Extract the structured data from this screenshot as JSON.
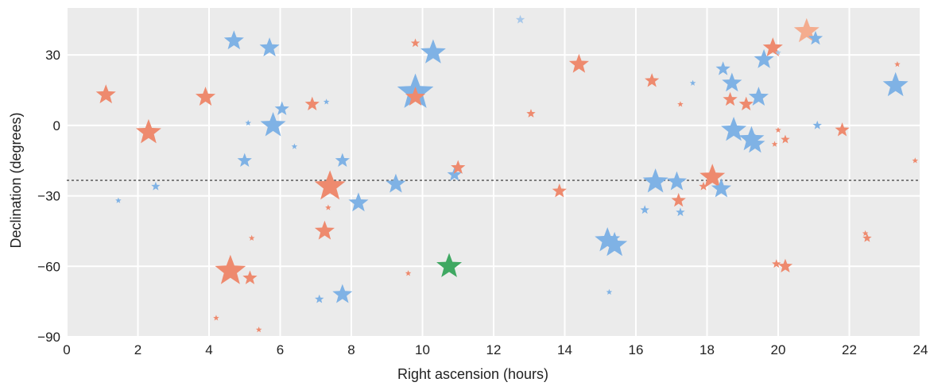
{
  "chart_data": {
    "type": "scatter",
    "title": "",
    "xlabel": "Right ascension (hours)",
    "ylabel": "Declination (degrees)",
    "xlim": [
      0,
      24
    ],
    "ylim": [
      -90,
      50
    ],
    "xticks": [
      0,
      2,
      4,
      6,
      8,
      10,
      12,
      14,
      16,
      18,
      20,
      22,
      24
    ],
    "yticks": [
      -90,
      -60,
      -30,
      0,
      30
    ],
    "ytick_labels": [
      "−90",
      "−60",
      "−30",
      "0",
      "30"
    ],
    "grid": true,
    "background": "#ebebeb",
    "reference_line": {
      "y": -23.4,
      "style": "dotted",
      "color": "#666666"
    },
    "colors": {
      "blue": "#7fb2e5",
      "orange": "#ee8a6e",
      "light_orange": "#f4ac8e",
      "light_blue": "#a8c8ea",
      "green": "#3fa862"
    },
    "marker": "star",
    "points": [
      {
        "ra": 1.1,
        "dec": 13,
        "mag": 2,
        "color": "orange"
      },
      {
        "ra": 2.3,
        "dec": -3,
        "mag": 1,
        "color": "orange"
      },
      {
        "ra": 1.45,
        "dec": -32,
        "mag": 5,
        "color": "blue"
      },
      {
        "ra": 2.5,
        "dec": -26,
        "mag": 4,
        "color": "blue"
      },
      {
        "ra": 3.9,
        "dec": 12,
        "mag": 2,
        "color": "orange"
      },
      {
        "ra": 4.2,
        "dec": -82,
        "mag": 5,
        "color": "orange"
      },
      {
        "ra": 4.6,
        "dec": -62,
        "mag": 0,
        "color": "orange"
      },
      {
        "ra": 4.7,
        "dec": 36,
        "mag": 2,
        "color": "blue"
      },
      {
        "ra": 5.0,
        "dec": -15,
        "mag": 3,
        "color": "blue"
      },
      {
        "ra": 5.1,
        "dec": 1,
        "mag": 5,
        "color": "blue"
      },
      {
        "ra": 5.15,
        "dec": -65,
        "mag": 3,
        "color": "orange"
      },
      {
        "ra": 5.2,
        "dec": -48,
        "mag": 5,
        "color": "orange"
      },
      {
        "ra": 5.4,
        "dec": -87,
        "mag": 5,
        "color": "orange"
      },
      {
        "ra": 5.7,
        "dec": 33,
        "mag": 2,
        "color": "blue"
      },
      {
        "ra": 5.8,
        "dec": 0,
        "mag": 1,
        "color": "blue"
      },
      {
        "ra": 6.05,
        "dec": 7,
        "mag": 3,
        "color": "blue"
      },
      {
        "ra": 6.4,
        "dec": -9,
        "mag": 5,
        "color": "blue"
      },
      {
        "ra": 6.9,
        "dec": 9,
        "mag": 3,
        "color": "orange"
      },
      {
        "ra": 7.1,
        "dec": -74,
        "mag": 4,
        "color": "blue"
      },
      {
        "ra": 7.25,
        "dec": -45,
        "mag": 2,
        "color": "orange"
      },
      {
        "ra": 7.3,
        "dec": 10,
        "mag": 5,
        "color": "blue"
      },
      {
        "ra": 7.35,
        "dec": -35,
        "mag": 5,
        "color": "orange"
      },
      {
        "ra": 7.4,
        "dec": -26,
        "mag": 0,
        "color": "orange"
      },
      {
        "ra": 7.75,
        "dec": -15,
        "mag": 3,
        "color": "blue"
      },
      {
        "ra": 7.75,
        "dec": -72,
        "mag": 2,
        "color": "blue"
      },
      {
        "ra": 8.2,
        "dec": -33,
        "mag": 2,
        "color": "blue"
      },
      {
        "ra": 9.25,
        "dec": -25,
        "mag": 2,
        "color": "blue"
      },
      {
        "ra": 9.6,
        "dec": -63,
        "mag": 5,
        "color": "orange"
      },
      {
        "ra": 9.8,
        "dec": 35,
        "mag": 4,
        "color": "orange"
      },
      {
        "ra": 9.8,
        "dec": 14,
        "mag": -1,
        "color": "blue"
      },
      {
        "ra": 9.8,
        "dec": 12,
        "mag": 2,
        "color": "orange"
      },
      {
        "ra": 10.3,
        "dec": 31,
        "mag": 1,
        "color": "blue"
      },
      {
        "ra": 10.75,
        "dec": -60,
        "mag": 1,
        "color": "green"
      },
      {
        "ra": 10.9,
        "dec": -21,
        "mag": 3,
        "color": "blue"
      },
      {
        "ra": 11.0,
        "dec": -18,
        "mag": 3,
        "color": "orange"
      },
      {
        "ra": 12.75,
        "dec": 45,
        "mag": 4,
        "color": "light_blue"
      },
      {
        "ra": 13.05,
        "dec": 5,
        "mag": 4,
        "color": "orange"
      },
      {
        "ra": 13.85,
        "dec": -28,
        "mag": 3,
        "color": "orange"
      },
      {
        "ra": 14.4,
        "dec": 26,
        "mag": 2,
        "color": "orange"
      },
      {
        "ra": 15.2,
        "dec": -49,
        "mag": 1,
        "color": "blue"
      },
      {
        "ra": 15.4,
        "dec": -51,
        "mag": 1,
        "color": "blue"
      },
      {
        "ra": 15.25,
        "dec": -71,
        "mag": 5,
        "color": "blue"
      },
      {
        "ra": 16.25,
        "dec": -36,
        "mag": 4,
        "color": "blue"
      },
      {
        "ra": 16.45,
        "dec": 19,
        "mag": 3,
        "color": "orange"
      },
      {
        "ra": 16.55,
        "dec": -24,
        "mag": 1,
        "color": "blue"
      },
      {
        "ra": 17.15,
        "dec": -24,
        "mag": 2,
        "color": "blue"
      },
      {
        "ra": 17.2,
        "dec": -32,
        "mag": 3,
        "color": "orange"
      },
      {
        "ra": 17.25,
        "dec": -37,
        "mag": 4,
        "color": "blue"
      },
      {
        "ra": 17.25,
        "dec": 9,
        "mag": 5,
        "color": "orange"
      },
      {
        "ra": 17.6,
        "dec": 18,
        "mag": 5,
        "color": "blue"
      },
      {
        "ra": 17.9,
        "dec": -26,
        "mag": 4,
        "color": "orange"
      },
      {
        "ra": 18.15,
        "dec": -22,
        "mag": 1,
        "color": "orange"
      },
      {
        "ra": 18.4,
        "dec": -27,
        "mag": 2,
        "color": "blue"
      },
      {
        "ra": 18.45,
        "dec": 24,
        "mag": 3,
        "color": "blue"
      },
      {
        "ra": 18.65,
        "dec": 11,
        "mag": 3,
        "color": "orange"
      },
      {
        "ra": 18.7,
        "dec": 18,
        "mag": 2,
        "color": "blue"
      },
      {
        "ra": 18.75,
        "dec": -2,
        "mag": 1,
        "color": "blue"
      },
      {
        "ra": 19.1,
        "dec": 9,
        "mag": 3,
        "color": "orange"
      },
      {
        "ra": 19.25,
        "dec": -6,
        "mag": 1,
        "color": "blue"
      },
      {
        "ra": 19.35,
        "dec": -8,
        "mag": 2,
        "color": "blue"
      },
      {
        "ra": 19.45,
        "dec": 12,
        "mag": 2,
        "color": "blue"
      },
      {
        "ra": 19.6,
        "dec": 28,
        "mag": 2,
        "color": "blue"
      },
      {
        "ra": 19.85,
        "dec": 33,
        "mag": 2,
        "color": "orange"
      },
      {
        "ra": 19.9,
        "dec": -8,
        "mag": 5,
        "color": "orange"
      },
      {
        "ra": 19.95,
        "dec": -59,
        "mag": 4,
        "color": "orange"
      },
      {
        "ra": 20.0,
        "dec": 31,
        "mag": 5,
        "color": "light_blue"
      },
      {
        "ra": 20.0,
        "dec": -2,
        "mag": 5,
        "color": "orange"
      },
      {
        "ra": 20.2,
        "dec": -60,
        "mag": 3,
        "color": "orange"
      },
      {
        "ra": 20.2,
        "dec": -6,
        "mag": 4,
        "color": "orange"
      },
      {
        "ra": 20.8,
        "dec": 40,
        "mag": 1,
        "color": "light_orange"
      },
      {
        "ra": 21.05,
        "dec": 37,
        "mag": 3,
        "color": "blue"
      },
      {
        "ra": 21.1,
        "dec": 0,
        "mag": 4,
        "color": "blue"
      },
      {
        "ra": 21.8,
        "dec": -2,
        "mag": 3,
        "color": "orange"
      },
      {
        "ra": 22.45,
        "dec": -46,
        "mag": 5,
        "color": "orange"
      },
      {
        "ra": 22.5,
        "dec": -48,
        "mag": 4,
        "color": "orange"
      },
      {
        "ra": 23.3,
        "dec": 17,
        "mag": 1,
        "color": "blue"
      },
      {
        "ra": 23.35,
        "dec": 26,
        "mag": 5,
        "color": "orange"
      },
      {
        "ra": 23.85,
        "dec": -15,
        "mag": 5,
        "color": "orange"
      }
    ]
  }
}
